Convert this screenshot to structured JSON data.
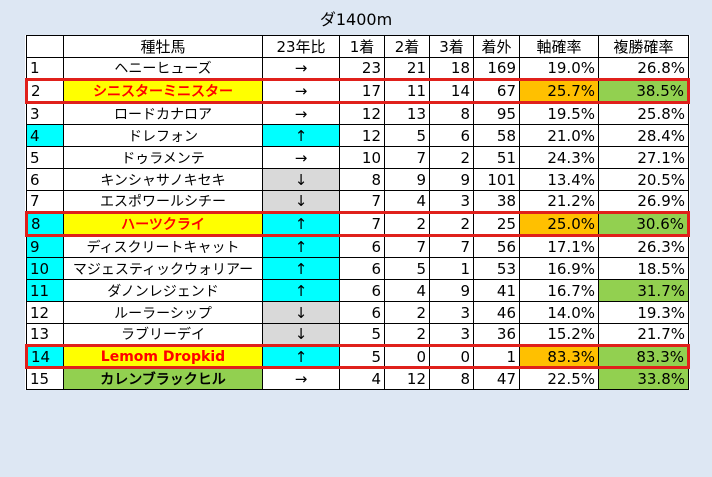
{
  "title": "ダ1400m",
  "headers": [
    "",
    "種牡馬",
    "23年比",
    "1着",
    "2着",
    "3着",
    "着外",
    "軸確率",
    "複勝確率"
  ],
  "colors": {
    "background": "#dde7f3",
    "cyan": "#00ffff",
    "gray": "#d9d9d9",
    "yellow": "#ffff00",
    "name_red": "#ff0000",
    "orange": "#ffc000",
    "green": "#92d050",
    "highlight_border": "#e0201b"
  },
  "rows": [
    {
      "rank": "1",
      "name": "ヘニーヒューズ",
      "trend": "→",
      "w1": "23",
      "w2": "21",
      "w3": "18",
      "out": "169",
      "axis": "19.0%",
      "place": "26.8%"
    },
    {
      "rank": "2",
      "name": "シニスターミニスター",
      "trend": "→",
      "w1": "17",
      "w2": "11",
      "w3": "14",
      "out": "67",
      "axis": "25.7%",
      "place": "38.5%",
      "highlighted": true,
      "name_style": "yellow-red",
      "axis_color": "orange",
      "place_color": "green"
    },
    {
      "rank": "3",
      "name": "ロードカナロア",
      "trend": "→",
      "w1": "12",
      "w2": "13",
      "w3": "8",
      "out": "95",
      "axis": "19.5%",
      "place": "25.8%"
    },
    {
      "rank": "4",
      "name": "ドレフォン",
      "trend": "↑",
      "w1": "12",
      "w2": "5",
      "w3": "6",
      "out": "58",
      "axis": "21.0%",
      "place": "28.4%",
      "rank_color": "cyan",
      "trend_color": "cyan"
    },
    {
      "rank": "5",
      "name": "ドゥラメンテ",
      "trend": "→",
      "w1": "10",
      "w2": "7",
      "w3": "2",
      "out": "51",
      "axis": "24.3%",
      "place": "27.1%"
    },
    {
      "rank": "6",
      "name": "キンシャサノキセキ",
      "trend": "↓",
      "w1": "8",
      "w2": "9",
      "w3": "9",
      "out": "101",
      "axis": "13.4%",
      "place": "20.5%",
      "trend_color": "gray"
    },
    {
      "rank": "7",
      "name": "エスポワールシチー",
      "trend": "↓",
      "w1": "7",
      "w2": "4",
      "w3": "3",
      "out": "38",
      "axis": "21.2%",
      "place": "26.9%",
      "trend_color": "gray"
    },
    {
      "rank": "8",
      "name": "ハーツクライ",
      "trend": "↑",
      "w1": "7",
      "w2": "2",
      "w3": "2",
      "out": "25",
      "axis": "25.0%",
      "place": "30.6%",
      "highlighted": true,
      "name_style": "yellow-red",
      "rank_color": "cyan",
      "trend_color": "cyan",
      "axis_color": "orange",
      "place_color": "green"
    },
    {
      "rank": "9",
      "name": "ディスクリートキャット",
      "trend": "↑",
      "w1": "6",
      "w2": "7",
      "w3": "7",
      "out": "56",
      "axis": "17.1%",
      "place": "26.3%",
      "rank_color": "cyan",
      "trend_color": "cyan"
    },
    {
      "rank": "10",
      "name": "マジェスティックウォリアー",
      "trend": "↑",
      "w1": "6",
      "w2": "5",
      "w3": "1",
      "out": "53",
      "axis": "16.9%",
      "place": "18.5%",
      "rank_color": "cyan",
      "trend_color": "cyan"
    },
    {
      "rank": "11",
      "name": "ダノンレジェンド",
      "trend": "↑",
      "w1": "6",
      "w2": "4",
      "w3": "9",
      "out": "41",
      "axis": "16.7%",
      "place": "31.7%",
      "rank_color": "cyan",
      "trend_color": "cyan",
      "place_color": "green"
    },
    {
      "rank": "12",
      "name": "ルーラーシップ",
      "trend": "↓",
      "w1": "6",
      "w2": "2",
      "w3": "3",
      "out": "46",
      "axis": "14.0%",
      "place": "19.3%",
      "trend_color": "gray"
    },
    {
      "rank": "13",
      "name": "ラブリーデイ",
      "trend": "↓",
      "w1": "5",
      "w2": "2",
      "w3": "3",
      "out": "36",
      "axis": "15.2%",
      "place": "21.7%",
      "trend_color": "gray"
    },
    {
      "rank": "14",
      "name": "Lemom Dropkid",
      "trend": "↑",
      "w1": "5",
      "w2": "0",
      "w3": "0",
      "out": "1",
      "axis": "83.3%",
      "place": "83.3%",
      "highlighted": true,
      "name_style": "yellow-red",
      "rank_color": "cyan",
      "trend_color": "cyan",
      "axis_color": "orange",
      "place_color": "green"
    },
    {
      "rank": "15",
      "name": "カレンブラックヒル",
      "trend": "→",
      "w1": "4",
      "w2": "12",
      "w3": "8",
      "out": "47",
      "axis": "22.5%",
      "place": "33.8%",
      "name_style": "green-black",
      "place_color": "green"
    }
  ]
}
